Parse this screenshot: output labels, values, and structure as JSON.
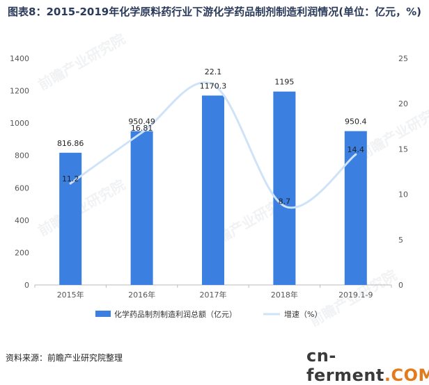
{
  "title": "图表8：2015-2019年化学原料药行业下游化学药品制剂制造利润情况(单位：亿元，%)",
  "source": "资料来源：前瞻产业研究院整理",
  "watermark": {
    "brand_left": "cn-ferment",
    "brand_right": ".COM",
    "faint": "前瞻产业研究院"
  },
  "colors": {
    "bar": "#3b7fe0",
    "line": "#cfe3f8",
    "axis": "#bbbbbb"
  },
  "chart_data": {
    "type": "bar+line",
    "categories": [
      "2015年",
      "2016年",
      "2017年",
      "2018年",
      "2019.1-9"
    ],
    "series": [
      {
        "name": "化学药品制剂制造利润总额（亿元）",
        "type": "bar",
        "axis": "left",
        "values": [
          816.86,
          950.49,
          1170.3,
          1195,
          950.4
        ],
        "labels": [
          "816.86",
          "950.49",
          "1170.3",
          "1195",
          "950.4"
        ]
      },
      {
        "name": "增速（%）",
        "type": "line",
        "axis": "right",
        "smooth": true,
        "values": [
          11.2,
          16.81,
          22.1,
          8.7,
          14.4
        ],
        "labels": [
          "11.2",
          "16.81",
          "22.1",
          "8.7",
          "14.4"
        ]
      }
    ],
    "y_left": {
      "min": 0,
      "max": 1400,
      "ticks": [
        0,
        200,
        400,
        600,
        800,
        1000,
        1200,
        1400
      ]
    },
    "y_right": {
      "min": 0,
      "max": 25,
      "ticks": [
        0,
        5,
        10,
        15,
        20,
        25
      ]
    },
    "legend": [
      "化学药品制剂制造利润总额（亿元）",
      "增速（%）"
    ],
    "legend_position": "bottom"
  }
}
